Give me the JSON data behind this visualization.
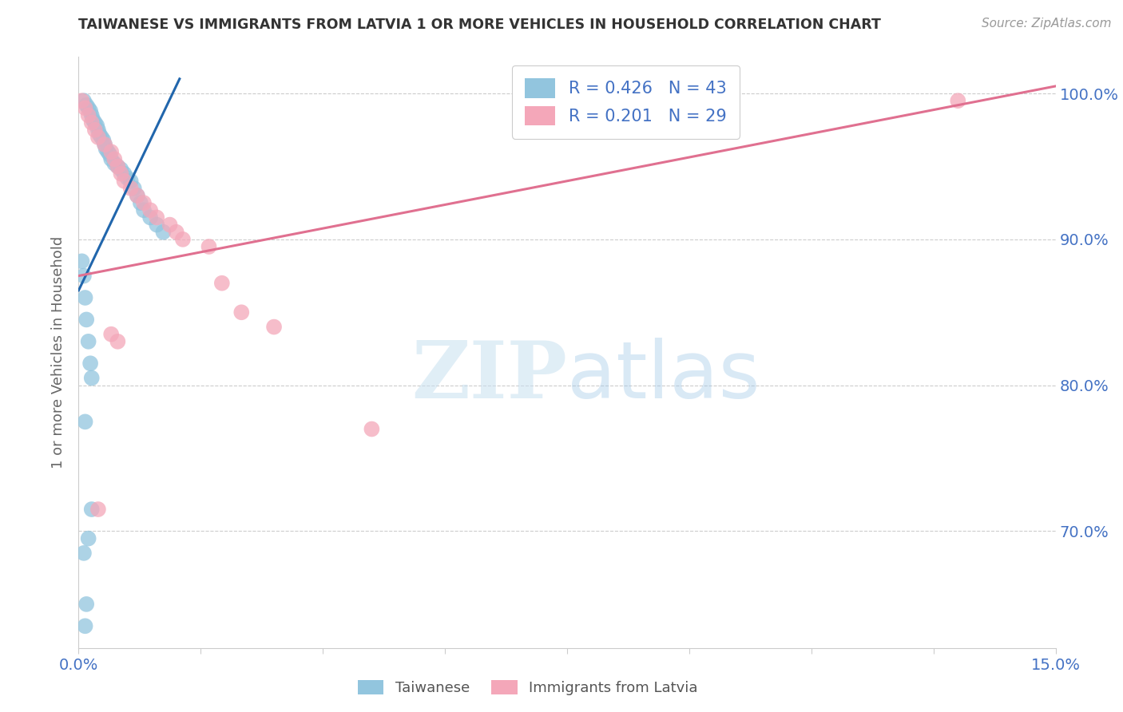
{
  "title": "TAIWANESE VS IMMIGRANTS FROM LATVIA 1 OR MORE VEHICLES IN HOUSEHOLD CORRELATION CHART",
  "source": "Source: ZipAtlas.com",
  "ylabel": "1 or more Vehicles in Household",
  "watermark_zip": "ZIP",
  "watermark_atlas": "atlas",
  "legend1_label": "Taiwanese",
  "legend2_label": "Immigrants from Latvia",
  "R1": 0.426,
  "N1": 43,
  "R2": 0.201,
  "N2": 29,
  "color_blue": "#92c5de",
  "color_pink": "#f4a7b9",
  "color_line_blue": "#2166ac",
  "color_line_pink": "#e07090",
  "color_axis_labels": "#4472c4",
  "color_grid": "#cccccc",
  "xlim": [
    0.0,
    15.0
  ],
  "ylim": [
    62.0,
    102.5
  ],
  "yticks": [
    70.0,
    80.0,
    90.0,
    100.0
  ],
  "xtick_positions": [
    0,
    1.875,
    3.75,
    5.625,
    7.5,
    9.375,
    11.25,
    13.125,
    15.0
  ],
  "blue_x": [
    0.08,
    0.12,
    0.15,
    0.18,
    0.2,
    0.22,
    0.25,
    0.28,
    0.3,
    0.32,
    0.35,
    0.38,
    0.4,
    0.42,
    0.45,
    0.48,
    0.5,
    0.55,
    0.6,
    0.65,
    0.7,
    0.75,
    0.8,
    0.85,
    0.9,
    0.95,
    1.0,
    1.1,
    1.2,
    1.3,
    0.05,
    0.08,
    0.1,
    0.12,
    0.15,
    0.18,
    0.2,
    0.1,
    0.2,
    0.15,
    0.08,
    0.12,
    0.1
  ],
  "blue_y": [
    99.5,
    99.2,
    99.0,
    98.8,
    98.5,
    98.2,
    98.0,
    97.8,
    97.5,
    97.2,
    97.0,
    96.8,
    96.5,
    96.2,
    96.0,
    95.8,
    95.5,
    95.2,
    95.0,
    94.8,
    94.5,
    94.2,
    94.0,
    93.5,
    93.0,
    92.5,
    92.0,
    91.5,
    91.0,
    90.5,
    88.5,
    87.5,
    86.0,
    84.5,
    83.0,
    81.5,
    80.5,
    77.5,
    71.5,
    69.5,
    68.5,
    65.0,
    63.5
  ],
  "pink_x": [
    0.05,
    0.1,
    0.15,
    0.2,
    0.25,
    0.3,
    0.4,
    0.5,
    0.55,
    0.6,
    0.65,
    0.7,
    0.8,
    0.9,
    1.0,
    1.1,
    1.2,
    1.4,
    1.5,
    1.6,
    2.0,
    2.2,
    2.5,
    3.0,
    4.5,
    0.5,
    0.6,
    13.5,
    0.3
  ],
  "pink_y": [
    99.5,
    99.0,
    98.5,
    98.0,
    97.5,
    97.0,
    96.5,
    96.0,
    95.5,
    95.0,
    94.5,
    94.0,
    93.5,
    93.0,
    92.5,
    92.0,
    91.5,
    91.0,
    90.5,
    90.0,
    89.5,
    87.0,
    85.0,
    84.0,
    77.0,
    83.5,
    83.0,
    99.5,
    71.5
  ],
  "blue_line_x": [
    0.0,
    1.55
  ],
  "blue_line_y": [
    86.5,
    101.0
  ],
  "pink_line_x": [
    0.0,
    15.0
  ],
  "pink_line_y": [
    87.5,
    100.5
  ]
}
